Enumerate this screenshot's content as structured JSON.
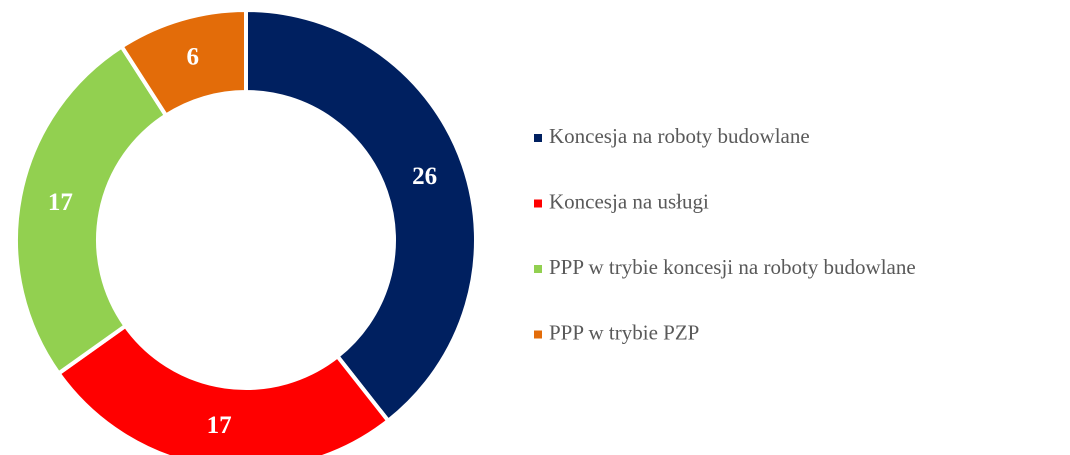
{
  "chart_data": {
    "type": "donut",
    "categories": [
      "Koncesja na roboty budowlane",
      "Koncesja na usługi",
      "PPP w trybie koncesji na roboty budowlane",
      "PPP w trybie PZP"
    ],
    "values": [
      26,
      17,
      17,
      6
    ],
    "colors": [
      "#002060",
      "#ff0000",
      "#92d050",
      "#e36c09"
    ],
    "legend": "right"
  }
}
